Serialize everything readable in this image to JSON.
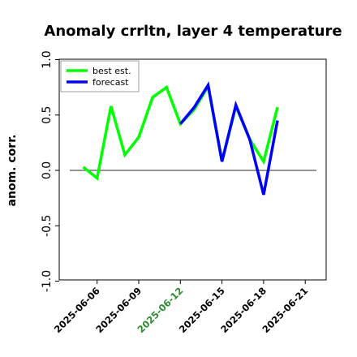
{
  "chart_data": {
    "type": "line",
    "title": "Anomaly crrltn, layer 4 temperature",
    "xlabel": "",
    "ylabel": "anom. corr.",
    "ylim": [
      -1.0,
      1.0
    ],
    "yticks": [
      "-1.0",
      "-0.5",
      "0.0",
      "0.5",
      "1.0"
    ],
    "ytick_values": [
      -1.0,
      -0.5,
      0.0,
      0.5,
      1.0
    ],
    "xticks": [
      "2025-06-06",
      "2025-06-09",
      "2025-06-12",
      "2025-06-15",
      "2025-06-18",
      "2025-06-21"
    ],
    "xtick_colors": [
      "#000000",
      "#000000",
      "#2e8b2e",
      "#000000",
      "#000000",
      "#000000"
    ],
    "x_dates": [
      "2025-06-05",
      "2025-06-06",
      "2025-06-07",
      "2025-06-08",
      "2025-06-09",
      "2025-06-10",
      "2025-06-11",
      "2025-06-12",
      "2025-06-13",
      "2025-06-14",
      "2025-06-15",
      "2025-06-16",
      "2025-06-17",
      "2025-06-18",
      "2025-06-19",
      "2025-06-20"
    ],
    "series": [
      {
        "name": "best est.",
        "color": "#00ff00",
        "values": [
          0.03,
          -0.07,
          0.58,
          0.14,
          0.3,
          0.66,
          0.75,
          0.42,
          0.55,
          0.76,
          0.08,
          0.58,
          0.28,
          0.08,
          0.57,
          null
        ]
      },
      {
        "name": "forecast",
        "color": "#0000ff",
        "values": [
          null,
          null,
          null,
          null,
          null,
          null,
          null,
          0.42,
          0.57,
          0.77,
          0.08,
          0.59,
          0.28,
          -0.22,
          0.45,
          null
        ]
      }
    ],
    "reference_line": 0.0,
    "legend_position": "top-left",
    "grid": false
  }
}
